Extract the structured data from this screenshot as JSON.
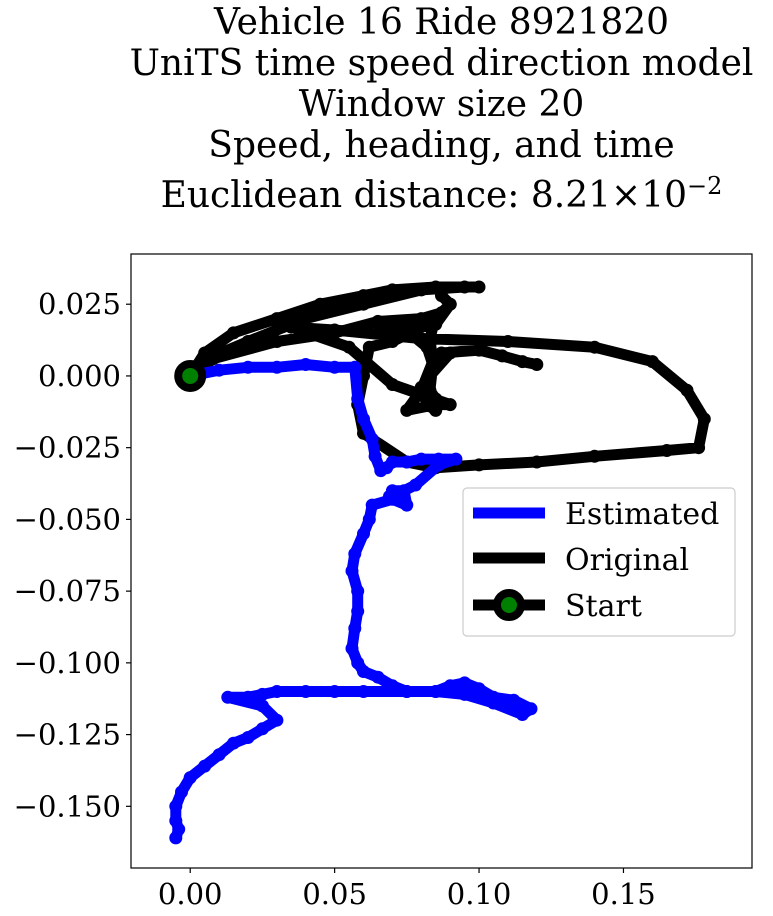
{
  "chart_data": {
    "type": "line",
    "title_lines": [
      "Vehicle 16 Ride 8921820",
      "UniTS time speed direction model",
      "Window size 20",
      "Speed, heading, and time"
    ],
    "title_metric_text": "Euclidean distance: 8.21",
    "title_metric_base": "×10",
    "title_metric_exponent": "−2",
    "xlabel": "",
    "ylabel": "",
    "xlim": [
      -0.0205,
      0.1945
    ],
    "ylim": [
      -0.1715,
      0.0425
    ],
    "x_ticks": [
      0.0,
      0.05,
      0.1,
      0.15
    ],
    "x_tick_labels": [
      "0.00",
      "0.05",
      "0.10",
      "0.15"
    ],
    "y_ticks": [
      0.025,
      0.0,
      -0.025,
      -0.05,
      -0.075,
      -0.1,
      -0.125,
      -0.15
    ],
    "y_tick_labels": [
      "0.025",
      "0.000",
      "−0.025",
      "−0.050",
      "−0.075",
      "−0.100",
      "−0.125",
      "−0.150"
    ],
    "grid": false,
    "legend_position": "center-right",
    "series": [
      {
        "name": "Estimated",
        "color": "#0000ff",
        "x": [
          0.0,
          0.01,
          0.02,
          0.03,
          0.04,
          0.05,
          0.057,
          0.058,
          0.06,
          0.063,
          0.064,
          0.066,
          0.068,
          0.07,
          0.075,
          0.08,
          0.086,
          0.092,
          0.086,
          0.078,
          0.072,
          0.069,
          0.07,
          0.074,
          0.075,
          0.07,
          0.063,
          0.062,
          0.06,
          0.057,
          0.056,
          0.058,
          0.058,
          0.057,
          0.056,
          0.058,
          0.06,
          0.065,
          0.07,
          0.075,
          0.085,
          0.09,
          0.095,
          0.1,
          0.105,
          0.112,
          0.118,
          0.115,
          0.105,
          0.095,
          0.085,
          0.075,
          0.06,
          0.05,
          0.04,
          0.03,
          0.025,
          0.02,
          0.013,
          0.025,
          0.03,
          0.025,
          0.02,
          0.015,
          0.01,
          0.005,
          0.0,
          -0.003,
          -0.005,
          -0.005,
          -0.004,
          -0.005
        ],
        "y": [
          0.0,
          0.002,
          0.003,
          0.003,
          0.004,
          0.003,
          0.003,
          -0.008,
          -0.015,
          -0.022,
          -0.028,
          -0.033,
          -0.032,
          -0.03,
          -0.03,
          -0.029,
          -0.029,
          -0.029,
          -0.031,
          -0.038,
          -0.041,
          -0.042,
          -0.04,
          -0.04,
          -0.045,
          -0.043,
          -0.045,
          -0.05,
          -0.055,
          -0.062,
          -0.068,
          -0.075,
          -0.082,
          -0.088,
          -0.095,
          -0.1,
          -0.103,
          -0.105,
          -0.108,
          -0.11,
          -0.11,
          -0.108,
          -0.107,
          -0.109,
          -0.112,
          -0.113,
          -0.116,
          -0.118,
          -0.114,
          -0.111,
          -0.11,
          -0.11,
          -0.11,
          -0.11,
          -0.11,
          -0.11,
          -0.111,
          -0.112,
          -0.112,
          -0.115,
          -0.12,
          -0.123,
          -0.126,
          -0.128,
          -0.132,
          -0.136,
          -0.14,
          -0.145,
          -0.15,
          -0.155,
          -0.158,
          -0.161
        ]
      },
      {
        "name": "Original",
        "color": "#000000",
        "x": [
          0.0,
          0.005,
          0.015,
          0.03,
          0.045,
          0.06,
          0.07,
          0.085,
          0.1,
          0.095,
          0.08,
          0.06,
          0.04,
          0.02,
          0.006,
          0.0,
          0.008,
          0.03,
          0.05,
          0.065,
          0.08,
          0.087,
          0.09,
          0.087,
          0.09,
          0.085,
          0.075,
          0.065,
          0.07,
          0.085,
          0.083,
          0.084,
          0.08,
          0.075,
          0.085,
          0.09,
          0.07,
          0.055,
          0.035,
          0.05,
          0.08,
          0.11,
          0.14,
          0.16,
          0.172,
          0.178,
          0.176,
          0.165,
          0.14,
          0.12,
          0.1,
          0.085,
          0.075,
          0.06,
          0.058,
          0.06,
          0.062,
          0.07,
          0.076,
          0.082,
          0.084,
          0.083,
          0.085,
          0.085,
          0.082,
          0.08,
          0.083,
          0.09,
          0.087,
          0.1,
          0.108,
          0.115,
          0.12
        ],
        "y": [
          0.0,
          0.008,
          0.015,
          0.02,
          0.025,
          0.028,
          0.03,
          0.031,
          0.031,
          0.031,
          0.03,
          0.025,
          0.02,
          0.012,
          0.006,
          0.0,
          0.006,
          0.012,
          0.015,
          0.019,
          0.02,
          0.022,
          0.025,
          0.028,
          0.025,
          0.018,
          0.016,
          0.015,
          0.018,
          0.021,
          0.013,
          0.005,
          -0.005,
          -0.012,
          -0.01,
          -0.01,
          -0.003,
          0.01,
          0.017,
          0.016,
          0.013,
          0.012,
          0.01,
          0.005,
          -0.005,
          -0.015,
          -0.025,
          -0.026,
          -0.028,
          -0.03,
          -0.031,
          -0.032,
          -0.03,
          -0.02,
          -0.01,
          0.0,
          0.01,
          0.012,
          0.015,
          0.01,
          0.004,
          -0.005,
          -0.008,
          -0.012,
          -0.01,
          -0.004,
          0.0,
          0.008,
          0.008,
          0.009,
          0.007,
          0.005,
          0.004
        ]
      }
    ],
    "start_marker": {
      "name": "Start",
      "x": 0.0,
      "y": 0.0,
      "face_color": "#008000",
      "edge_color": "#000000"
    }
  }
}
